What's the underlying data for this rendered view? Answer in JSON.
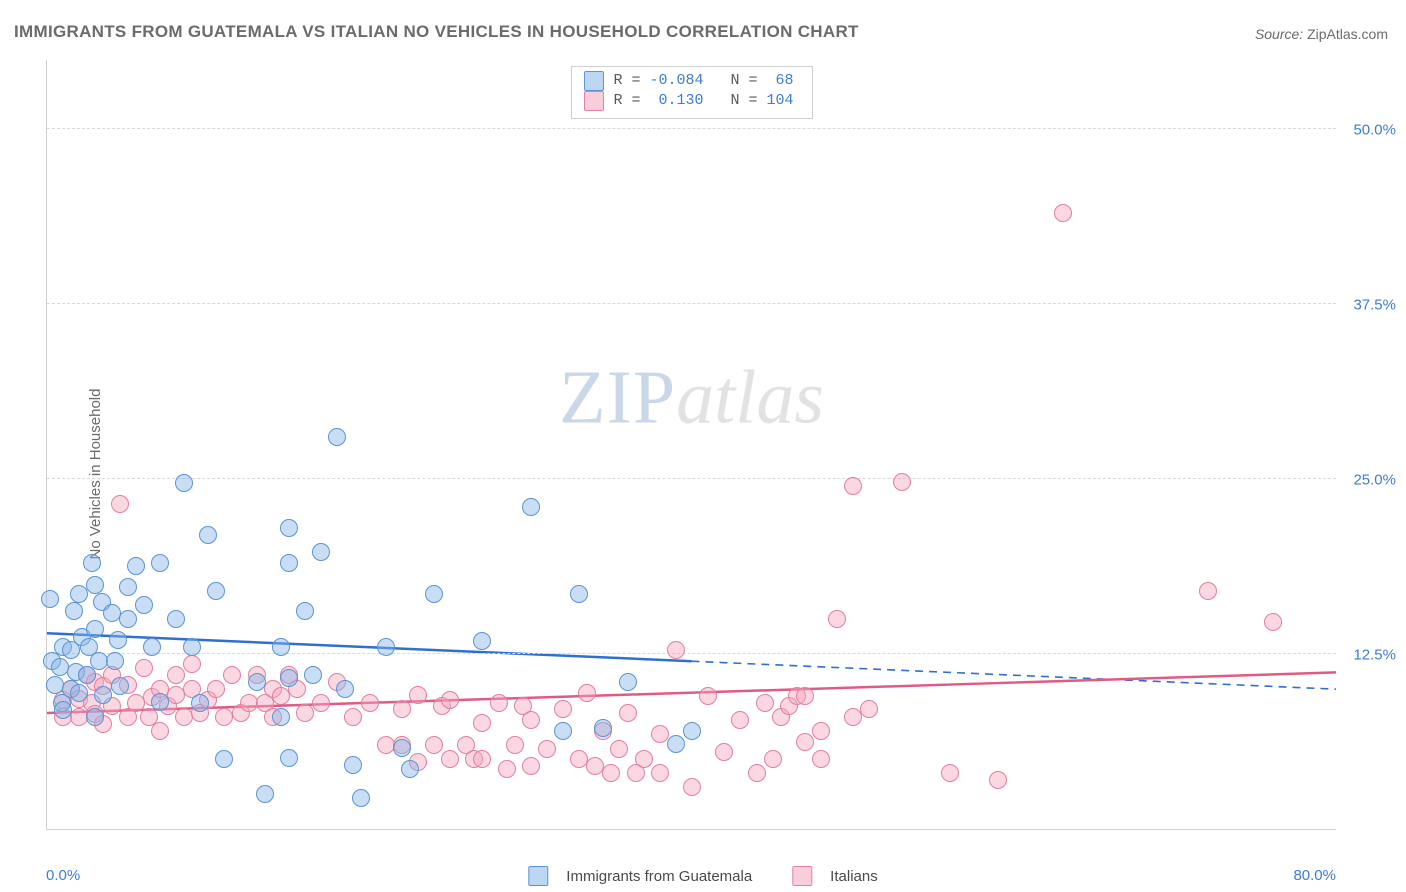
{
  "title": "IMMIGRANTS FROM GUATEMALA VS ITALIAN NO VEHICLES IN HOUSEHOLD CORRELATION CHART",
  "source_label": "Source:",
  "source_value": "ZipAtlas.com",
  "ylabel": "No Vehicles in Household",
  "watermark": {
    "part1": "ZIP",
    "part2": "atlas"
  },
  "chart": {
    "type": "scatter-correlation",
    "background_color": "#ffffff",
    "grid_color": "#d8d8d8",
    "axis_color": "#cfcfcf",
    "tick_color": "#3b7dd8",
    "label_color": "#6b6b6b",
    "xlim": [
      0,
      80
    ],
    "ylim": [
      0,
      55
    ],
    "xticks": [
      {
        "value": 0,
        "label": "0.0%"
      },
      {
        "value": 80,
        "label": "80.0%"
      }
    ],
    "yticks": [
      {
        "value": 12.5,
        "label": "12.5%"
      },
      {
        "value": 25.0,
        "label": "25.0%"
      },
      {
        "value": 37.5,
        "label": "37.5%"
      },
      {
        "value": 50.0,
        "label": "50.0%"
      }
    ],
    "point_radius": 9,
    "series": [
      {
        "id": "guatemala",
        "label": "Immigrants from Guatemala",
        "color_fill": "rgba(135,181,231,0.45)",
        "color_stroke": "#5a94d6",
        "line_color": "#2f6fd0",
        "R": "-0.084",
        "N": "68",
        "trend": {
          "x0": 0,
          "y0": 14.0,
          "x_solid_end": 40,
          "y_solid_end": 12.0,
          "x1": 80,
          "y1": 10.0
        },
        "points": [
          [
            0.2,
            16.4
          ],
          [
            0.3,
            12.0
          ],
          [
            0.5,
            10.3
          ],
          [
            0.8,
            11.6
          ],
          [
            1.0,
            13.0
          ],
          [
            0.9,
            9.0
          ],
          [
            1.0,
            8.5
          ],
          [
            1.5,
            10.0
          ],
          [
            1.5,
            12.8
          ],
          [
            1.7,
            15.6
          ],
          [
            1.8,
            11.2
          ],
          [
            2.0,
            16.8
          ],
          [
            2.0,
            9.7
          ],
          [
            2.2,
            13.7
          ],
          [
            2.5,
            11.0
          ],
          [
            2.6,
            13.0
          ],
          [
            2.8,
            19.0
          ],
          [
            3.0,
            8.0
          ],
          [
            3.0,
            17.4
          ],
          [
            3.0,
            14.3
          ],
          [
            3.2,
            12.0
          ],
          [
            3.4,
            16.2
          ],
          [
            3.5,
            9.6
          ],
          [
            4.0,
            15.4
          ],
          [
            4.2,
            12.0
          ],
          [
            4.4,
            13.5
          ],
          [
            4.5,
            10.2
          ],
          [
            5.0,
            17.3
          ],
          [
            5.0,
            15.0
          ],
          [
            5.5,
            18.8
          ],
          [
            6.0,
            16.0
          ],
          [
            6.5,
            13.0
          ],
          [
            7.0,
            19.0
          ],
          [
            7.0,
            9.1
          ],
          [
            8.0,
            15.0
          ],
          [
            8.5,
            24.7
          ],
          [
            9.0,
            13.0
          ],
          [
            9.5,
            9.0
          ],
          [
            10.0,
            21.0
          ],
          [
            10.5,
            17.0
          ],
          [
            11.0,
            5.0
          ],
          [
            13.0,
            10.5
          ],
          [
            13.5,
            2.5
          ],
          [
            14.5,
            8.0
          ],
          [
            14.5,
            13.0
          ],
          [
            15.0,
            19.0
          ],
          [
            15.0,
            21.5
          ],
          [
            15.0,
            10.8
          ],
          [
            15.0,
            5.1
          ],
          [
            16.0,
            15.6
          ],
          [
            16.5,
            11.0
          ],
          [
            17.0,
            19.8
          ],
          [
            18.0,
            28.0
          ],
          [
            18.5,
            10.0
          ],
          [
            19.0,
            4.6
          ],
          [
            19.5,
            2.2
          ],
          [
            21.0,
            13.0
          ],
          [
            22.0,
            5.8
          ],
          [
            22.5,
            4.3
          ],
          [
            24.0,
            16.8
          ],
          [
            27.0,
            13.4
          ],
          [
            30.0,
            23.0
          ],
          [
            32.0,
            7.0
          ],
          [
            33.0,
            16.8
          ],
          [
            34.5,
            7.2
          ],
          [
            36.0,
            10.5
          ],
          [
            39.0,
            6.1
          ],
          [
            40.0,
            7.0
          ]
        ]
      },
      {
        "id": "italians",
        "label": "Italians",
        "color_fill": "rgba(244,166,188,0.45)",
        "color_stroke": "#e47f9e",
        "line_color": "#e05a86",
        "R": "0.130",
        "N": "104",
        "trend": {
          "x0": 0,
          "y0": 8.3,
          "x_solid_end": 80,
          "y_solid_end": 11.2,
          "x1": 80,
          "y1": 11.2
        },
        "points": [
          [
            1.0,
            9.2
          ],
          [
            1.0,
            8.0
          ],
          [
            1.5,
            10.0
          ],
          [
            2.0,
            8.0
          ],
          [
            2.0,
            9.3
          ],
          [
            2.5,
            11.0
          ],
          [
            2.8,
            9.0
          ],
          [
            3.0,
            8.2
          ],
          [
            3.0,
            10.5
          ],
          [
            3.5,
            7.5
          ],
          [
            3.5,
            10.2
          ],
          [
            4.0,
            8.8
          ],
          [
            4.0,
            11.0
          ],
          [
            4.5,
            23.2
          ],
          [
            5.0,
            8.0
          ],
          [
            5.0,
            10.3
          ],
          [
            5.5,
            9.0
          ],
          [
            6.0,
            11.5
          ],
          [
            6.3,
            8.0
          ],
          [
            6.5,
            9.4
          ],
          [
            7.0,
            10.0
          ],
          [
            7.0,
            7.0
          ],
          [
            7.5,
            8.8
          ],
          [
            8.0,
            9.6
          ],
          [
            8.0,
            11.0
          ],
          [
            8.5,
            8.0
          ],
          [
            9.0,
            10.0
          ],
          [
            9.0,
            11.8
          ],
          [
            9.5,
            8.3
          ],
          [
            10.0,
            9.2
          ],
          [
            10.5,
            10.0
          ],
          [
            11.0,
            8.0
          ],
          [
            11.5,
            11.0
          ],
          [
            12.0,
            8.3
          ],
          [
            12.5,
            9.0
          ],
          [
            13.0,
            11.0
          ],
          [
            13.5,
            9.0
          ],
          [
            14.0,
            10.0
          ],
          [
            14.0,
            8.0
          ],
          [
            14.5,
            9.5
          ],
          [
            15.0,
            11.0
          ],
          [
            15.5,
            10.0
          ],
          [
            16.0,
            8.3
          ],
          [
            17.0,
            9.0
          ],
          [
            18.0,
            10.5
          ],
          [
            19.0,
            8.0
          ],
          [
            20.0,
            9.0
          ],
          [
            21.0,
            6.0
          ],
          [
            22.0,
            8.6
          ],
          [
            22.0,
            6.0
          ],
          [
            23.0,
            4.8
          ],
          [
            23.0,
            9.6
          ],
          [
            24.0,
            6.0
          ],
          [
            24.5,
            8.8
          ],
          [
            25.0,
            5.0
          ],
          [
            25.0,
            9.2
          ],
          [
            26.0,
            6.0
          ],
          [
            26.5,
            5.0
          ],
          [
            27.0,
            7.6
          ],
          [
            27.0,
            5.0
          ],
          [
            28.0,
            9.0
          ],
          [
            28.5,
            4.3
          ],
          [
            29.0,
            6.0
          ],
          [
            29.5,
            8.8
          ],
          [
            30.0,
            4.5
          ],
          [
            30.0,
            7.8
          ],
          [
            31.0,
            5.7
          ],
          [
            32.0,
            8.6
          ],
          [
            33.0,
            5.0
          ],
          [
            33.5,
            9.7
          ],
          [
            34.0,
            4.5
          ],
          [
            34.5,
            7.0
          ],
          [
            35.0,
            4.0
          ],
          [
            35.5,
            5.7
          ],
          [
            36.0,
            8.3
          ],
          [
            36.5,
            4.0
          ],
          [
            37.0,
            5.0
          ],
          [
            38.0,
            4.0
          ],
          [
            38.0,
            6.8
          ],
          [
            39.0,
            12.8
          ],
          [
            40.0,
            3.0
          ],
          [
            41.0,
            9.5
          ],
          [
            42.0,
            5.5
          ],
          [
            43.0,
            7.8
          ],
          [
            44.0,
            4.0
          ],
          [
            44.5,
            9.0
          ],
          [
            45.0,
            5.0
          ],
          [
            45.5,
            8.0
          ],
          [
            46.0,
            8.8
          ],
          [
            46.5,
            9.5
          ],
          [
            47.0,
            6.2
          ],
          [
            48.0,
            5.0
          ],
          [
            48.0,
            7.0
          ],
          [
            49.0,
            15.0
          ],
          [
            50.0,
            24.5
          ],
          [
            51.0,
            8.6
          ],
          [
            53.0,
            24.8
          ],
          [
            56.0,
            4.0
          ],
          [
            59.0,
            3.5
          ],
          [
            63.0,
            44.0
          ],
          [
            72.0,
            17.0
          ],
          [
            76.0,
            14.8
          ],
          [
            47.0,
            9.5
          ],
          [
            50.0,
            8.0
          ]
        ]
      }
    ]
  },
  "legend_top": {
    "r_key": "R =",
    "n_key": "N ="
  },
  "legend_bottom": [
    {
      "series": "guatemala"
    },
    {
      "series": "italians"
    }
  ]
}
